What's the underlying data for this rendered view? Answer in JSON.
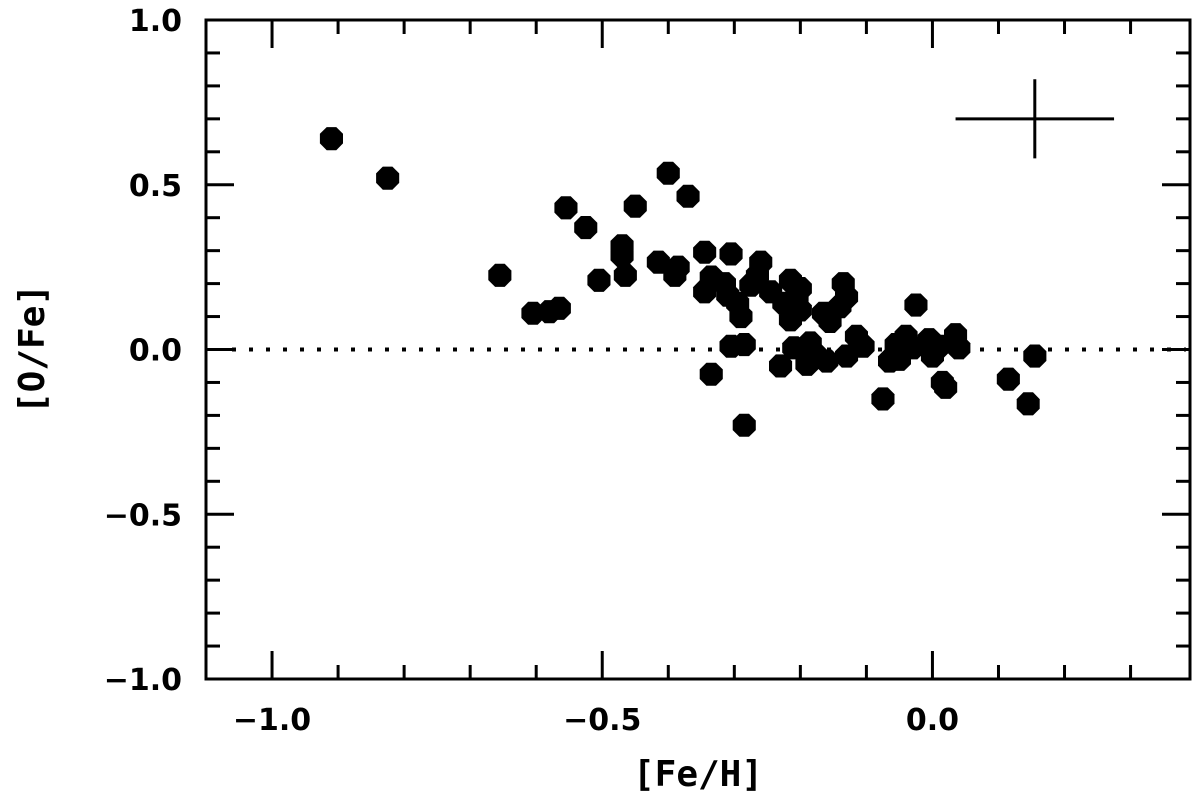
{
  "chart_data": {
    "type": "scatter",
    "title": "",
    "xlabel": "[Fe/H]",
    "ylabel": "[O/Fe]",
    "xlim": [
      -1.1,
      0.39
    ],
    "ylim": [
      -1.0,
      1.0
    ],
    "x_ticks": [
      -1.0,
      -0.5,
      0.0
    ],
    "x_tick_labels": [
      "−1.0",
      "−0.5",
      "0.0"
    ],
    "y_ticks": [
      1.0,
      0.5,
      0.0,
      -0.5,
      -1.0
    ],
    "y_tick_labels": [
      "1.0",
      "0.5",
      "0.0",
      "−0.5",
      "−1.0"
    ],
    "reference_line": {
      "y": 0.0,
      "style": "dotted"
    },
    "error_bar": {
      "x": 0.155,
      "y": 0.7,
      "xerr": 0.12,
      "yerr": 0.12
    },
    "grid": false,
    "legend": "none",
    "marker_color": "#000000",
    "series": [
      {
        "points": [
          [
            -0.91,
            0.64
          ],
          [
            -0.825,
            0.52
          ],
          [
            -0.655,
            0.225
          ],
          [
            -0.605,
            0.11
          ],
          [
            -0.58,
            0.115
          ],
          [
            -0.565,
            0.125
          ],
          [
            -0.555,
            0.43
          ],
          [
            -0.525,
            0.37
          ],
          [
            -0.505,
            0.21
          ],
          [
            -0.47,
            0.315
          ],
          [
            -0.47,
            0.285
          ],
          [
            -0.465,
            0.225
          ],
          [
            -0.45,
            0.435
          ],
          [
            -0.415,
            0.265
          ],
          [
            -0.4,
            0.535
          ],
          [
            -0.39,
            0.225
          ],
          [
            -0.385,
            0.25
          ],
          [
            -0.37,
            0.465
          ],
          [
            -0.345,
            0.295
          ],
          [
            -0.345,
            0.175
          ],
          [
            -0.335,
            0.22
          ],
          [
            -0.335,
            -0.075
          ],
          [
            -0.315,
            0.2
          ],
          [
            -0.31,
            0.165
          ],
          [
            -0.305,
            0.29
          ],
          [
            -0.305,
            0.01
          ],
          [
            -0.295,
            0.14
          ],
          [
            -0.29,
            0.1
          ],
          [
            -0.285,
            -0.23
          ],
          [
            -0.285,
            0.015
          ],
          [
            -0.275,
            0.195
          ],
          [
            -0.265,
            0.225
          ],
          [
            -0.26,
            0.265
          ],
          [
            -0.245,
            0.175
          ],
          [
            -0.23,
            -0.05
          ],
          [
            -0.225,
            0.14
          ],
          [
            -0.215,
            0.21
          ],
          [
            -0.215,
            0.09
          ],
          [
            -0.21,
            0.005
          ],
          [
            -0.205,
            0.16
          ],
          [
            -0.2,
            0.185
          ],
          [
            -0.2,
            0.12
          ],
          [
            -0.19,
            -0.045
          ],
          [
            -0.185,
            0.02
          ],
          [
            -0.175,
            -0.02
          ],
          [
            -0.165,
            0.11
          ],
          [
            -0.16,
            -0.035
          ],
          [
            -0.155,
            0.085
          ],
          [
            -0.14,
            0.13
          ],
          [
            -0.135,
            0.2
          ],
          [
            -0.13,
            0.16
          ],
          [
            -0.13,
            -0.02
          ],
          [
            -0.115,
            0.04
          ],
          [
            -0.105,
            0.01
          ],
          [
            -0.075,
            -0.15
          ],
          [
            -0.065,
            -0.035
          ],
          [
            -0.055,
            0.015
          ],
          [
            -0.05,
            -0.03
          ],
          [
            -0.04,
            0.04
          ],
          [
            -0.03,
            0.005
          ],
          [
            -0.025,
            0.135
          ],
          [
            -0.005,
            0.03
          ],
          [
            0.0,
            -0.02
          ],
          [
            0.01,
            0.01
          ],
          [
            0.015,
            -0.1
          ],
          [
            0.02,
            -0.115
          ],
          [
            0.035,
            0.045
          ],
          [
            0.04,
            0.005
          ],
          [
            0.115,
            -0.09
          ],
          [
            0.145,
            -0.165
          ],
          [
            0.155,
            -0.02
          ]
        ]
      }
    ]
  }
}
